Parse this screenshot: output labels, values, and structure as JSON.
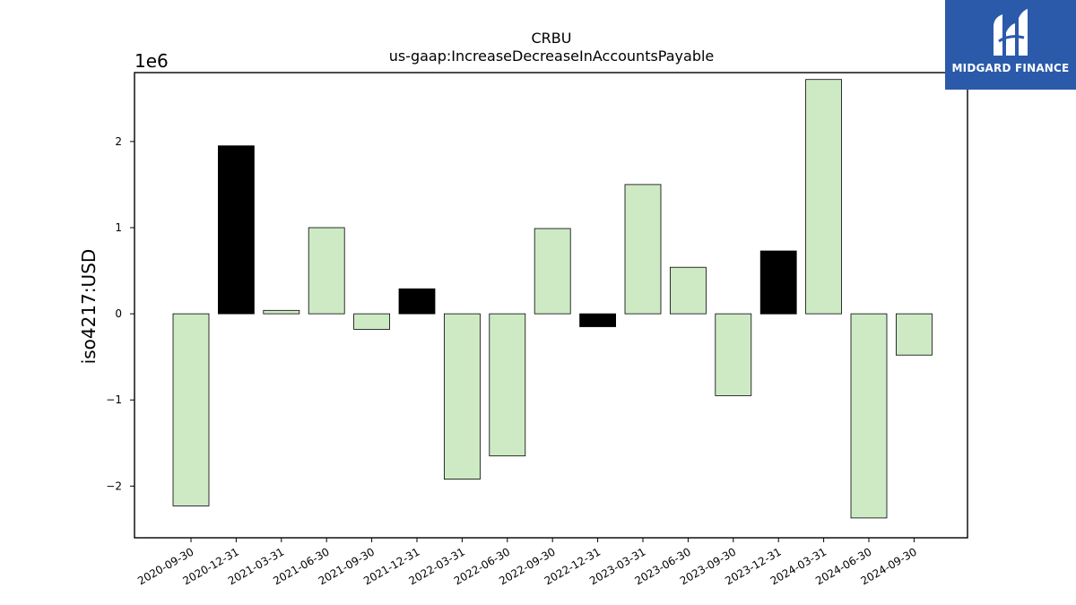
{
  "chart_data": {
    "type": "bar",
    "title": "CRBU",
    "subtitle": "us-gaap:IncreaseDecreaseInAccountsPayable",
    "ylabel": "iso4217:USD",
    "xlabel": "",
    "scale_label": "1e6",
    "ylim": [
      -2600000,
      2800000
    ],
    "yticks": [
      {
        "value": -2000000,
        "label": "−2"
      },
      {
        "value": -1000000,
        "label": "−1"
      },
      {
        "value": 0,
        "label": "0"
      },
      {
        "value": 1000000,
        "label": "1"
      },
      {
        "value": 2000000,
        "label": "2"
      }
    ],
    "categories": [
      "2020-09-30",
      "2020-12-31",
      "2021-03-31",
      "2021-06-30",
      "2021-09-30",
      "2021-12-31",
      "2022-03-31",
      "2022-06-30",
      "2022-09-30",
      "2022-12-31",
      "2023-03-31",
      "2023-06-30",
      "2023-09-30",
      "2023-12-31",
      "2024-03-31",
      "2024-06-30",
      "2024-09-30"
    ],
    "values": [
      -2230000,
      1950000,
      40000,
      1000000,
      -180000,
      290000,
      -1920000,
      -1650000,
      990000,
      -150000,
      1500000,
      540000,
      -950000,
      730000,
      2720000,
      -2370000,
      -480000
    ],
    "colors": [
      "#cdeac5",
      "#000000",
      "#cdeac5",
      "#cdeac5",
      "#cdeac5",
      "#000000",
      "#cdeac5",
      "#cdeac5",
      "#cdeac5",
      "#000000",
      "#cdeac5",
      "#cdeac5",
      "#cdeac5",
      "#000000",
      "#cdeac5",
      "#cdeac5",
      "#cdeac5"
    ],
    "grid": false,
    "legend": "none"
  },
  "logo": {
    "text": "MIDGARD FINANCE",
    "background": "#2b5aaa"
  }
}
